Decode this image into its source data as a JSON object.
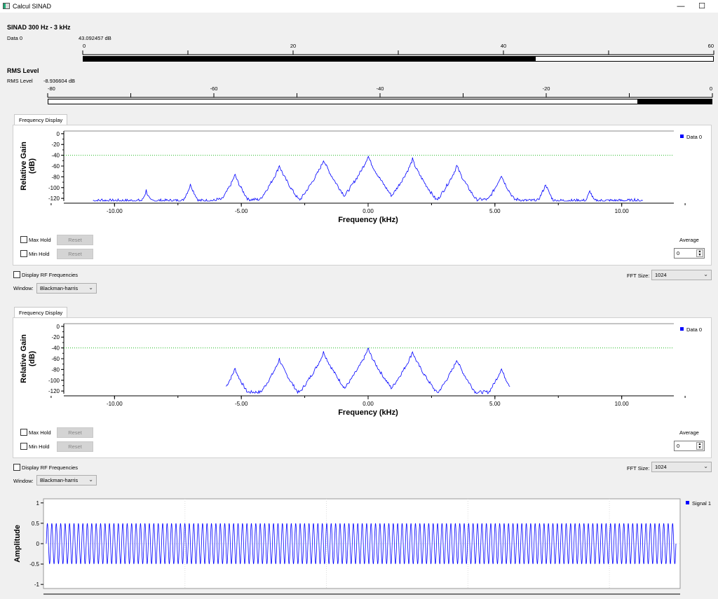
{
  "window": {
    "title": "Calcul SINAD",
    "minimize_glyph": "—",
    "maximize_glyph": "☐",
    "icon": "app-window-icon"
  },
  "sinad": {
    "section_title": "SINAD 300 Hz - 3 kHz",
    "label": "Data 0",
    "value_text": "43.092457 dB",
    "ticks": [
      "0",
      "20",
      "40",
      "60"
    ],
    "min": 0,
    "max": 60,
    "value": 43.092457
  },
  "rms": {
    "section_title": "RMS Level",
    "label": "RMS Level",
    "value_text": "-8.936604 dB",
    "ticks": [
      "-80",
      "-60",
      "-40",
      "-20",
      "0"
    ],
    "min": -80,
    "max": 0,
    "value": -8.936604
  },
  "freq1": {
    "tab_label": "Frequency Display",
    "legend": "Data 0",
    "ylabel": "Relative Gain (dB)",
    "ylabel_line1": "Relative Gain",
    "ylabel_line2": "(dB)",
    "xlabel": "Frequency (kHz)",
    "y_ticks": [
      "0",
      "-20",
      "-40",
      "-60",
      "-80",
      "-100",
      "-120"
    ],
    "x_ticks": [
      "-10.00",
      "-5.00",
      "0.00",
      "5.00",
      "10.00"
    ],
    "max_hold_label": "Max Hold",
    "min_hold_label": "Min Hold",
    "reset_label": "Reset",
    "average_label": "Average",
    "average_value": "0",
    "display_rf_label": "Display RF Frequencies",
    "fft_size_label": "FFT Size:",
    "fft_size_value": "1024",
    "window_label": "Window:",
    "window_value": "Blackman-harris"
  },
  "freq2": {
    "tab_label": "Frequency Display",
    "legend": "Data 0",
    "ylabel": "Relative Gain (dB)",
    "ylabel_line1": "Relative Gain",
    "ylabel_line2": "(dB)",
    "xlabel": "Frequency (kHz)",
    "y_ticks": [
      "0",
      "-20",
      "-40",
      "-60",
      "-80",
      "-100",
      "-120"
    ],
    "x_ticks": [
      "-10.00",
      "-5.00",
      "0.00",
      "5.00",
      "10.00"
    ],
    "max_hold_label": "Max Hold",
    "min_hold_label": "Min Hold",
    "reset_label": "Reset",
    "average_label": "Average",
    "average_value": "0",
    "display_rf_label": "Display RF Frequencies",
    "fft_size_label": "FFT Size:",
    "fft_size_value": "1024",
    "window_label": "Window:",
    "window_value": "Blackman-harris"
  },
  "time": {
    "legend": "Signal 1",
    "ylabel": "Amplitude",
    "y_ticks": [
      "1",
      "0.5",
      "0",
      "-0.5",
      "-1"
    ]
  },
  "chart_data": [
    {
      "type": "line",
      "title": "",
      "xlabel": "Frequency (kHz)",
      "ylabel": "Relative Gain (dB)",
      "xlim": [
        -12,
        12
      ],
      "ylim": [
        -125,
        5
      ],
      "threshold_line_db": -40,
      "series": [
        {
          "name": "Data 0",
          "color": "#0000ff",
          "peaks_x": [
            -10.5,
            -8.75,
            -7.0,
            -5.25,
            -3.5,
            -1.75,
            0.0,
            1.75,
            3.5,
            5.25,
            7.0,
            8.75,
            10.5
          ],
          "peaks_y": [
            -120,
            -105,
            -93,
            -75,
            -58,
            -47,
            -40,
            -47,
            -58,
            -75,
            -93,
            -105,
            -120
          ]
        }
      ]
    },
    {
      "type": "line",
      "title": "",
      "xlabel": "Frequency (kHz)",
      "ylabel": "Relative Gain (dB)",
      "xlim": [
        -12,
        12
      ],
      "ylim": [
        -125,
        5
      ],
      "threshold_line_db": -40,
      "series": [
        {
          "name": "Data 0",
          "color": "#0000ff",
          "peaks_x": [
            -5.25,
            -3.5,
            -1.75,
            0.0,
            1.75,
            3.5,
            5.25
          ],
          "peaks_y": [
            -77,
            -60,
            -46,
            -40,
            -46,
            -60,
            -77
          ]
        }
      ]
    },
    {
      "type": "line",
      "title": "",
      "ylabel": "Amplitude",
      "ylim": [
        -1.1,
        1.1
      ],
      "series": [
        {
          "name": "Signal 1",
          "color": "#0000ff",
          "amplitude": 0.5,
          "cycles": 142
        }
      ]
    }
  ]
}
